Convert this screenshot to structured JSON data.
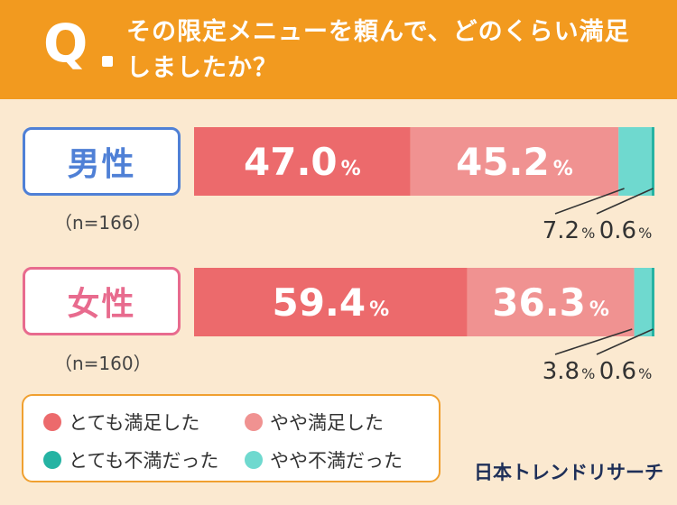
{
  "header": {
    "q_mark": "Q",
    "question": "その限定メニューを頼んで、どのくらい満足しましたか？"
  },
  "groups": [
    {
      "label": "男性",
      "n": "（n=166）"
    },
    {
      "label": "女性",
      "n": "（n=160）"
    }
  ],
  "legend": [
    {
      "label": "とても満足した",
      "color": "#ec6a6c"
    },
    {
      "label": "やや満足した",
      "color": "#f09291"
    },
    {
      "label": "とても不満だった",
      "color": "#25b3a3"
    },
    {
      "label": "やや不満だった",
      "color": "#6fd9cf"
    }
  ],
  "logo": "日本トレンドリサーチ",
  "chart_data": {
    "type": "bar",
    "orientation": "horizontal",
    "stacked": true,
    "percent_unit": "%",
    "categories": [
      "男性",
      "女性"
    ],
    "series": [
      {
        "name": "とても満足した",
        "values": [
          47.0,
          59.4
        ],
        "color": "#ec6a6c"
      },
      {
        "name": "やや満足した",
        "values": [
          45.2,
          36.3
        ],
        "color": "#f09291"
      },
      {
        "name": "やや不満だった",
        "values": [
          7.2,
          3.8
        ],
        "color": "#6fd9cf"
      },
      {
        "name": "とても不満だった",
        "values": [
          0.6,
          0.6
        ],
        "color": "#25b3a3"
      }
    ],
    "xlim": [
      0,
      100
    ]
  }
}
